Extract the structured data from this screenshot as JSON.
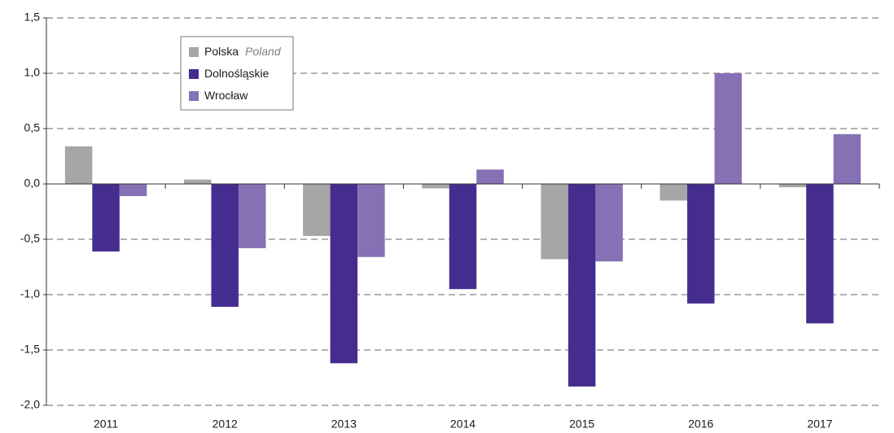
{
  "chart_data": {
    "type": "bar",
    "categories": [
      "2011",
      "2012",
      "2013",
      "2014",
      "2015",
      "2016",
      "2017"
    ],
    "series": [
      {
        "name": "Polska",
        "name_en": "Poland",
        "color": "#a6a6a6",
        "values": [
          0.34,
          0.04,
          -0.47,
          -0.04,
          -0.68,
          -0.15,
          -0.03
        ]
      },
      {
        "name": "Dolnośląskie",
        "color": "#452d8f",
        "values": [
          -0.61,
          -1.11,
          -1.62,
          -0.95,
          -1.83,
          -1.08,
          -1.26
        ]
      },
      {
        "name": "Wrocław",
        "color": "#8671b5",
        "values": [
          -0.11,
          -0.58,
          -0.66,
          0.13,
          -0.7,
          1.0,
          0.45
        ]
      }
    ],
    "ylim": [
      -2.0,
      1.5
    ],
    "yticks": [
      {
        "value": 1.5,
        "label": "1,5"
      },
      {
        "value": 1.0,
        "label": "1,0"
      },
      {
        "value": 0.5,
        "label": "0,5"
      },
      {
        "value": 0.0,
        "label": "0,0"
      },
      {
        "value": -0.5,
        "label": "-0,5"
      },
      {
        "value": -1.0,
        "label": "-1,0"
      },
      {
        "value": -1.5,
        "label": "-1,5"
      },
      {
        "value": -2.0,
        "label": "-2,0"
      }
    ],
    "grid": true
  }
}
